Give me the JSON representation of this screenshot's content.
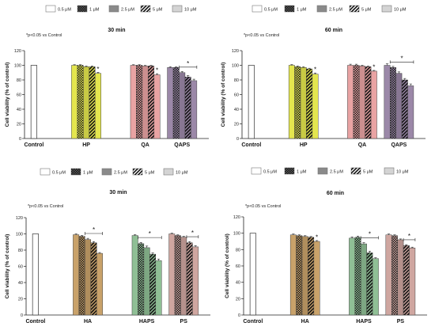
{
  "legend": {
    "entries": [
      {
        "label": "0.5 μM",
        "pattern": "plain"
      },
      {
        "label": "1 μM",
        "pattern": "check"
      },
      {
        "label": "2.5 μM",
        "pattern": "solid"
      },
      {
        "label": "5 μM",
        "pattern": "stripe"
      },
      {
        "label": "10 μM",
        "pattern": "light"
      }
    ]
  },
  "chart_data": [
    {
      "type": "bar",
      "title": "30 min",
      "ylabel": "Cell viability (% of control)",
      "ylim": [
        0,
        120
      ],
      "yticks": [
        0,
        20,
        40,
        60,
        80,
        100,
        120
      ],
      "note": "*p<0.05 vs Control",
      "control": {
        "name": "Control",
        "value": 100
      },
      "groups": [
        {
          "name": "HP",
          "color": "#e4e64e",
          "values": [
            100,
            100,
            98,
            98,
            89
          ],
          "errors": [
            0.8,
            0.8,
            1,
            1,
            1.5
          ]
        },
        {
          "name": "QA",
          "color": "#e9a3a3",
          "values": [
            100,
            100,
            99,
            99,
            87
          ],
          "errors": [
            0.8,
            0.8,
            0.8,
            1,
            1.5
          ]
        },
        {
          "name": "QAPS",
          "color": "#9b88a8",
          "values": [
            97,
            97,
            90,
            84,
            79
          ],
          "errors": [
            1,
            1,
            1.5,
            2,
            2
          ]
        }
      ],
      "annotations": [
        {
          "group": "HP",
          "bar": 4,
          "text": "*"
        },
        {
          "group": "QA",
          "bar": 4,
          "text": "*"
        },
        {
          "group": "QAPS",
          "bar_range": [
            2,
            4
          ],
          "text": "*"
        }
      ]
    },
    {
      "type": "bar",
      "title": "60 min",
      "ylabel": "Cell viability (% of control)",
      "ylim": [
        0,
        120
      ],
      "yticks": [
        0,
        20,
        40,
        60,
        80,
        100,
        120
      ],
      "note": "*p<0.05 vs Control",
      "control": {
        "name": "Control",
        "value": 100
      },
      "groups": [
        {
          "name": "HP",
          "color": "#e4e64e",
          "values": [
            100,
            98,
            97,
            95,
            88
          ],
          "errors": [
            1,
            1,
            1,
            1,
            1.5
          ]
        },
        {
          "name": "QA",
          "color": "#e9a3a3",
          "values": [
            100,
            100,
            99,
            98,
            92
          ],
          "errors": [
            1.5,
            1.5,
            1,
            1,
            1
          ]
        },
        {
          "name": "QAPS",
          "color": "#9b88a8",
          "values": [
            100,
            97,
            89,
            80,
            72
          ],
          "errors": [
            2,
            1.5,
            2,
            2,
            2.5
          ]
        }
      ],
      "annotations": [
        {
          "group": "HP",
          "bar": 4,
          "text": "*"
        },
        {
          "group": "QA",
          "bar": 4,
          "text": "*"
        },
        {
          "group": "QAPS",
          "bar_range": [
            1,
            4
          ],
          "text": "*"
        }
      ]
    },
    {
      "type": "bar",
      "title": "30 min",
      "ylabel": "Cell viability (% of control)",
      "ylim": [
        0,
        120
      ],
      "yticks": [
        0,
        20,
        40,
        60,
        80,
        100,
        120
      ],
      "note": "*p<0.05 vs Control",
      "control": {
        "name": "Control",
        "value": 100
      },
      "groups": [
        {
          "name": "HA",
          "color": "#c9a26a",
          "values": [
            99,
            97,
            93,
            89,
            76
          ],
          "errors": [
            1,
            1,
            1.5,
            1.5,
            1
          ]
        },
        {
          "name": "HAPS",
          "color": "#8fbf95",
          "values": [
            98,
            88,
            83,
            75,
            67
          ],
          "errors": [
            1,
            1.5,
            2,
            1.5,
            2
          ]
        },
        {
          "name": "PS",
          "color": "#cfa6a0",
          "values": [
            100,
            98,
            96,
            89,
            84
          ],
          "errors": [
            0.8,
            0.8,
            1,
            1.5,
            1.5
          ]
        }
      ],
      "annotations": [
        {
          "group": "HA",
          "bar_range": [
            2,
            4
          ],
          "text": "*"
        },
        {
          "group": "HAPS",
          "bar_range": [
            1,
            4
          ],
          "text": "*"
        },
        {
          "group": "PS",
          "bar_range": [
            3,
            4
          ],
          "text": "*"
        }
      ]
    },
    {
      "type": "bar",
      "title": "60 min",
      "ylabel": "Cell viability (% of control)",
      "ylim": [
        0,
        120
      ],
      "yticks": [
        0,
        20,
        40,
        60,
        80,
        100,
        120
      ],
      "note": "*p<0.05 vs Control",
      "control": {
        "name": "Control",
        "value": 100
      },
      "groups": [
        {
          "name": "HA",
          "color": "#c9a26a",
          "values": [
            98,
            97,
            96,
            95,
            90
          ],
          "errors": [
            1,
            1,
            1,
            1,
            1
          ]
        },
        {
          "name": "HAPS",
          "color": "#8fbf95",
          "values": [
            94,
            95,
            87,
            76,
            69
          ],
          "errors": [
            1.5,
            1.5,
            1.5,
            2,
            1
          ]
        },
        {
          "name": "PS",
          "color": "#cfa6a0",
          "values": [
            98,
            97,
            92,
            85,
            82
          ],
          "errors": [
            1,
            1,
            1,
            1,
            1
          ]
        }
      ],
      "annotations": [
        {
          "group": "HA",
          "bar": 4,
          "text": "*"
        },
        {
          "group": "HAPS",
          "bar_range": [
            2,
            4
          ],
          "text": "*"
        },
        {
          "group": "PS",
          "bar_range": [
            3,
            4
          ],
          "text": "*"
        }
      ]
    }
  ]
}
